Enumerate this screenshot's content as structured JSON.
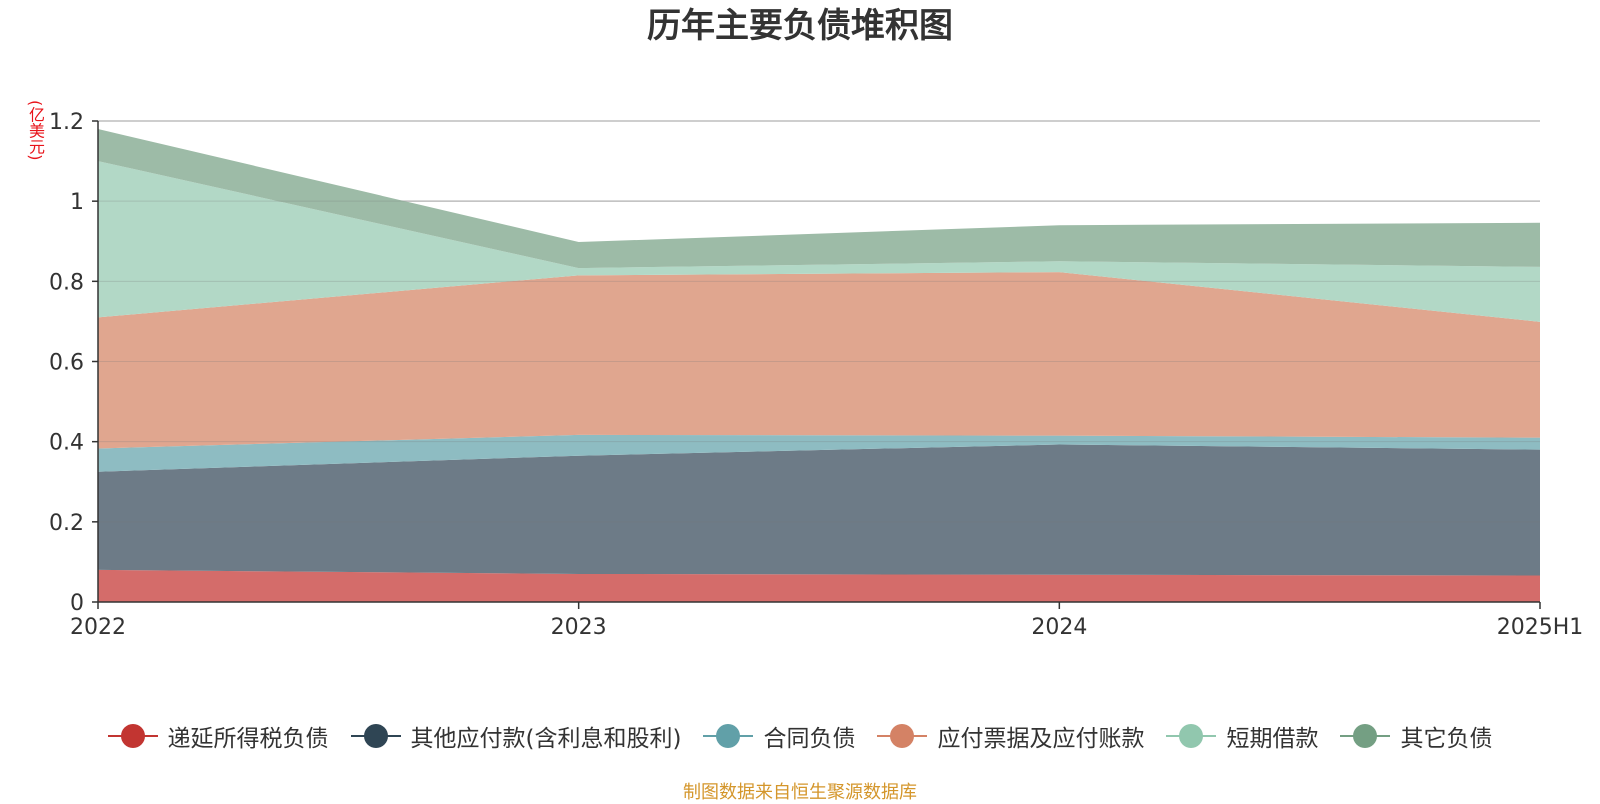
{
  "chart_data": {
    "type": "area",
    "stacked": true,
    "title": "历年主要负债堆积图",
    "unit": "(亿美元)",
    "source": "制图数据来自恒生聚源数据库",
    "categories": [
      "2022",
      "2023",
      "2024",
      "2025H1"
    ],
    "ylim": [
      0,
      1.2
    ],
    "yticks": [
      0,
      0.2,
      0.4,
      0.6,
      0.8,
      1,
      1.2
    ],
    "ytick_labels": [
      "0",
      "0.2",
      "0.4",
      "0.6",
      "0.8",
      "1",
      "1.2"
    ],
    "grid": true,
    "legend_position": "bottom",
    "series": [
      {
        "name": "递延所得税负债",
        "values": [
          0.08,
          0.07,
          0.068,
          0.066
        ],
        "color": "#c23531",
        "fill": "#d46c6a"
      },
      {
        "name": "其他应付款(含利息和股利)",
        "values": [
          0.245,
          0.295,
          0.325,
          0.314
        ],
        "color": "#2f4554",
        "fill": "#6d7b87"
      },
      {
        "name": "合同负债",
        "values": [
          0.058,
          0.052,
          0.022,
          0.03
        ],
        "color": "#61a0a8",
        "fill": "#8ebcc2"
      },
      {
        "name": "应付票据及应付账款",
        "values": [
          0.327,
          0.398,
          0.408,
          0.289
        ],
        "color": "#d48265",
        "fill": "#e0a68f"
      },
      {
        "name": "短期借款",
        "values": [
          0.39,
          0.018,
          0.027,
          0.137
        ],
        "color": "#91c7ae",
        "fill": "#b2d8c6"
      },
      {
        "name": "其它负债",
        "values": [
          0.08,
          0.065,
          0.09,
          0.11
        ],
        "color": "#749f83",
        "fill": "#9dbba7"
      }
    ]
  }
}
